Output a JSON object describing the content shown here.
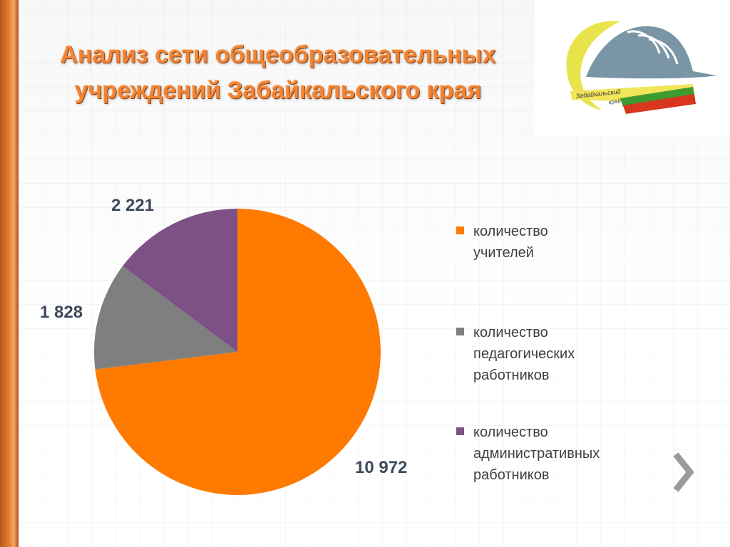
{
  "slide": {
    "title_line1": "Анализ сети общеобразовательных",
    "title_line2": "учреждений Забайкальского края",
    "logo_text_line1": "Забайкальский",
    "logo_text_line2": "край",
    "next_icon": "chevron-right-icon"
  },
  "chart_data": {
    "type": "pie",
    "title": "",
    "start_angle": "12 o'clock, clockwise",
    "legend_position": "right",
    "slices": [
      {
        "label": "количество учителей",
        "legend_lines": [
          "количество",
          "учителей"
        ],
        "value": 10972,
        "display": "10 972",
        "color": "#ff7a00"
      },
      {
        "label": "количество педагогических работников",
        "legend_lines": [
          "количество",
          "педагогических",
          "работников"
        ],
        "value": 1828,
        "display": "1 828",
        "color": "#7f7f7f"
      },
      {
        "label": "количество административных работников",
        "legend_lines": [
          "количество",
          "административных",
          "работников"
        ],
        "value": 2221,
        "display": "2 221",
        "color": "#7d5185"
      }
    ]
  }
}
